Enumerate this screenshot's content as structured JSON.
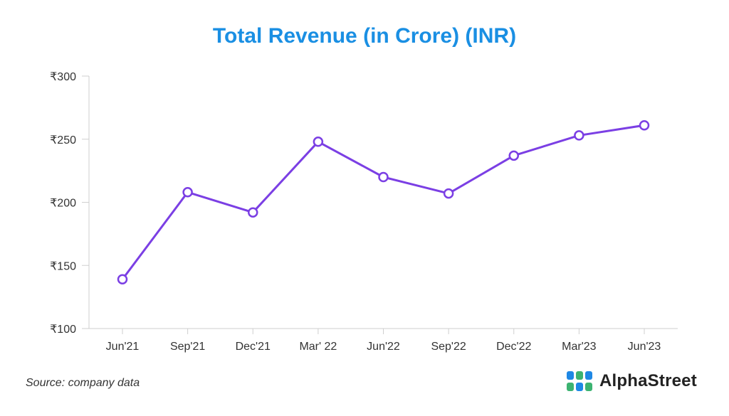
{
  "chart_data": {
    "type": "line",
    "title": "Total Revenue (in Crore) (INR)",
    "categories": [
      "Jun'21",
      "Sep'21",
      "Dec'21",
      "Mar' 22",
      "Jun'22",
      "Sep'22",
      "Dec'22",
      "Mar'23",
      "Jun'23"
    ],
    "series": [
      {
        "name": "Total Revenue",
        "values": [
          139,
          208,
          192,
          248,
          220,
          207,
          237,
          253,
          261
        ]
      }
    ],
    "ylim": [
      100,
      300
    ],
    "yticks": [
      100,
      150,
      200,
      250,
      300
    ],
    "ytick_labels": [
      "₹100",
      "₹150",
      "₹200",
      "₹250",
      "₹300"
    ],
    "xlabel": "",
    "ylabel": "",
    "grid": false,
    "line_color": "#7b3fe4"
  },
  "footer": {
    "source": "Source: company data",
    "brand": "AlphaStreet"
  },
  "colors": {
    "title": "#1a8fe3",
    "logo_blue": "#1e88e5",
    "logo_green": "#3cb371"
  }
}
